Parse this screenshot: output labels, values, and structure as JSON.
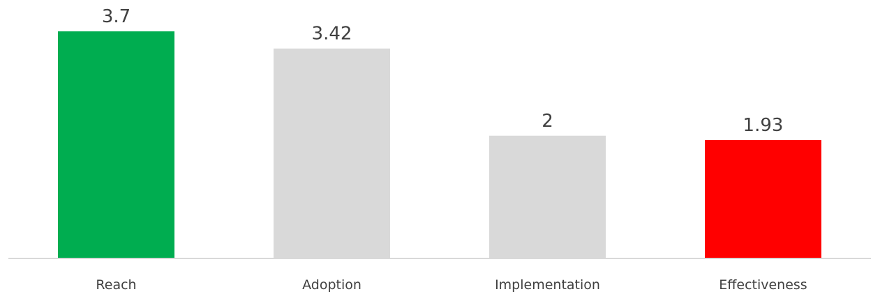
{
  "chart_data": {
    "type": "bar",
    "title": "",
    "xlabel": "",
    "ylabel": "",
    "categories": [
      "Reach",
      "Adoption",
      "Implementation",
      "Effectiveness"
    ],
    "values": [
      3.7,
      3.42,
      2,
      1.93
    ],
    "value_labels": [
      "3.7",
      "3.42",
      "2",
      "1.93"
    ],
    "colors": [
      "#00AD50",
      "#D9D9D9",
      "#D9D9D9",
      "#FF0000"
    ],
    "ylim": [
      0,
      3.7
    ],
    "grid": false,
    "legend": "none",
    "axis_color": "#D9D9D9"
  }
}
